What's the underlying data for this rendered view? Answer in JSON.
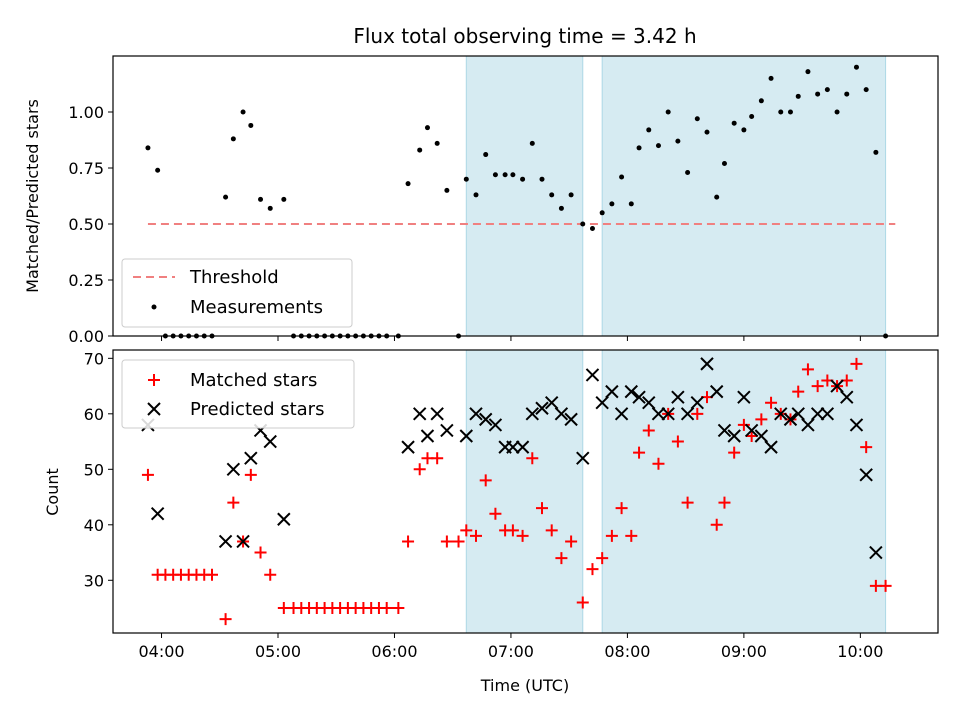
{
  "chart_data": [
    {
      "type": "scatter",
      "title": "Flux total observing time = 3.42 h",
      "ylabel": "Matched/Predicted stars",
      "xlabel": "",
      "xlim": [
        "03:35",
        "10:40"
      ],
      "ylim": [
        0,
        1.25
      ],
      "yticks": [
        "0.00",
        "0.25",
        "0.50",
        "0.75",
        "1.00"
      ],
      "xticks": [
        "04:00",
        "05:00",
        "06:00",
        "07:00",
        "08:00",
        "09:00",
        "10:00"
      ],
      "shaded_intervals": [
        [
          "06:37",
          "07:37"
        ],
        [
          "07:47",
          "10:13"
        ]
      ],
      "legend_position": "lower-left",
      "legend": [
        "Threshold",
        "Measurements"
      ],
      "threshold": {
        "name": "Threshold",
        "value": 0.5,
        "x_range": [
          "03:53",
          "10:18"
        ],
        "color": "#f08080"
      },
      "series": [
        {
          "name": "Measurements",
          "color": "#000000",
          "points": [
            [
              "03:53",
              0.84
            ],
            [
              "03:58",
              0.74
            ],
            [
              "04:02",
              0.0
            ],
            [
              "04:06",
              0.0
            ],
            [
              "04:10",
              0.0
            ],
            [
              "04:14",
              0.0
            ],
            [
              "04:18",
              0.0
            ],
            [
              "04:22",
              0.0
            ],
            [
              "04:26",
              0.0
            ],
            [
              "04:33",
              0.62
            ],
            [
              "04:37",
              0.88
            ],
            [
              "04:42",
              1.0
            ],
            [
              "04:46",
              0.94
            ],
            [
              "04:51",
              0.61
            ],
            [
              "04:56",
              0.57
            ],
            [
              "05:03",
              0.61
            ],
            [
              "05:08",
              0.0
            ],
            [
              "05:12",
              0.0
            ],
            [
              "05:16",
              0.0
            ],
            [
              "05:20",
              0.0
            ],
            [
              "05:24",
              0.0
            ],
            [
              "05:28",
              0.0
            ],
            [
              "05:32",
              0.0
            ],
            [
              "05:36",
              0.0
            ],
            [
              "05:40",
              0.0
            ],
            [
              "05:44",
              0.0
            ],
            [
              "05:48",
              0.0
            ],
            [
              "05:52",
              0.0
            ],
            [
              "05:56",
              0.0
            ],
            [
              "06:02",
              0.0
            ],
            [
              "06:07",
              0.68
            ],
            [
              "06:13",
              0.83
            ],
            [
              "06:17",
              0.93
            ],
            [
              "06:22",
              0.86
            ],
            [
              "06:27",
              0.65
            ],
            [
              "06:33",
              0.0
            ],
            [
              "06:37",
              0.7
            ],
            [
              "06:42",
              0.63
            ],
            [
              "06:47",
              0.81
            ],
            [
              "06:52",
              0.72
            ],
            [
              "06:57",
              0.72
            ],
            [
              "07:01",
              0.72
            ],
            [
              "07:06",
              0.7
            ],
            [
              "07:11",
              0.86
            ],
            [
              "07:16",
              0.7
            ],
            [
              "07:21",
              0.63
            ],
            [
              "07:26",
              0.57
            ],
            [
              "07:31",
              0.63
            ],
            [
              "07:37",
              0.5
            ],
            [
              "07:42",
              0.48
            ],
            [
              "07:47",
              0.55
            ],
            [
              "07:52",
              0.59
            ],
            [
              "07:57",
              0.71
            ],
            [
              "08:02",
              0.59
            ],
            [
              "08:06",
              0.84
            ],
            [
              "08:11",
              0.92
            ],
            [
              "08:16",
              0.85
            ],
            [
              "08:21",
              1.0
            ],
            [
              "08:26",
              0.87
            ],
            [
              "08:31",
              0.73
            ],
            [
              "08:36",
              0.97
            ],
            [
              "08:41",
              0.91
            ],
            [
              "08:46",
              0.62
            ],
            [
              "08:50",
              0.77
            ],
            [
              "08:55",
              0.95
            ],
            [
              "09:00",
              0.92
            ],
            [
              "09:04",
              0.98
            ],
            [
              "09:09",
              1.05
            ],
            [
              "09:14",
              1.15
            ],
            [
              "09:19",
              1.0
            ],
            [
              "09:24",
              1.0
            ],
            [
              "09:28",
              1.07
            ],
            [
              "09:33",
              1.18
            ],
            [
              "09:38",
              1.08
            ],
            [
              "09:43",
              1.1
            ],
            [
              "09:48",
              1.0
            ],
            [
              "09:53",
              1.08
            ],
            [
              "09:58",
              1.2
            ],
            [
              "10:03",
              1.1
            ],
            [
              "10:08",
              0.82
            ],
            [
              "10:13",
              0.0
            ]
          ]
        }
      ]
    },
    {
      "type": "scatter",
      "title": "",
      "ylabel": "Count",
      "xlabel": "Time (UTC)",
      "xlim": [
        "03:35",
        "10:40"
      ],
      "ylim": [
        20.5,
        71.5
      ],
      "yticks": [
        "30",
        "40",
        "50",
        "60",
        "70"
      ],
      "xticks": [
        "04:00",
        "05:00",
        "06:00",
        "07:00",
        "08:00",
        "09:00",
        "10:00"
      ],
      "shaded_intervals": [
        [
          "06:37",
          "07:37"
        ],
        [
          "07:47",
          "10:13"
        ]
      ],
      "legend_position": "upper-left",
      "legend": [
        "Matched stars",
        "Predicted stars"
      ],
      "series": [
        {
          "name": "Matched stars",
          "marker": "plus",
          "color": "#ff0000",
          "points": [
            [
              "03:53",
              49
            ],
            [
              "03:58",
              31
            ],
            [
              "04:02",
              31
            ],
            [
              "04:06",
              31
            ],
            [
              "04:10",
              31
            ],
            [
              "04:14",
              31
            ],
            [
              "04:18",
              31
            ],
            [
              "04:22",
              31
            ],
            [
              "04:26",
              31
            ],
            [
              "04:33",
              23
            ],
            [
              "04:37",
              44
            ],
            [
              "04:42",
              37
            ],
            [
              "04:46",
              49
            ],
            [
              "04:51",
              35
            ],
            [
              "04:56",
              31
            ],
            [
              "05:03",
              25
            ],
            [
              "05:08",
              25
            ],
            [
              "05:12",
              25
            ],
            [
              "05:16",
              25
            ],
            [
              "05:20",
              25
            ],
            [
              "05:24",
              25
            ],
            [
              "05:28",
              25
            ],
            [
              "05:32",
              25
            ],
            [
              "05:36",
              25
            ],
            [
              "05:40",
              25
            ],
            [
              "05:44",
              25
            ],
            [
              "05:48",
              25
            ],
            [
              "05:52",
              25
            ],
            [
              "05:56",
              25
            ],
            [
              "06:02",
              25
            ],
            [
              "06:07",
              37
            ],
            [
              "06:13",
              50
            ],
            [
              "06:17",
              52
            ],
            [
              "06:22",
              52
            ],
            [
              "06:27",
              37
            ],
            [
              "06:33",
              37
            ],
            [
              "06:37",
              39
            ],
            [
              "06:42",
              38
            ],
            [
              "06:47",
              48
            ],
            [
              "06:52",
              42
            ],
            [
              "06:57",
              39
            ],
            [
              "07:01",
              39
            ],
            [
              "07:06",
              38
            ],
            [
              "07:11",
              52
            ],
            [
              "07:16",
              43
            ],
            [
              "07:21",
              39
            ],
            [
              "07:26",
              34
            ],
            [
              "07:31",
              37
            ],
            [
              "07:37",
              26
            ],
            [
              "07:42",
              32
            ],
            [
              "07:47",
              34
            ],
            [
              "07:52",
              38
            ],
            [
              "07:57",
              43
            ],
            [
              "08:02",
              38
            ],
            [
              "08:06",
              53
            ],
            [
              "08:11",
              57
            ],
            [
              "08:16",
              51
            ],
            [
              "08:21",
              60
            ],
            [
              "08:26",
              55
            ],
            [
              "08:31",
              44
            ],
            [
              "08:36",
              60
            ],
            [
              "08:41",
              63
            ],
            [
              "08:46",
              40
            ],
            [
              "08:50",
              44
            ],
            [
              "08:55",
              53
            ],
            [
              "09:00",
              58
            ],
            [
              "09:04",
              56
            ],
            [
              "09:09",
              59
            ],
            [
              "09:14",
              62
            ],
            [
              "09:19",
              60
            ],
            [
              "09:24",
              59
            ],
            [
              "09:28",
              64
            ],
            [
              "09:33",
              68
            ],
            [
              "09:38",
              65
            ],
            [
              "09:43",
              66
            ],
            [
              "09:48",
              65
            ],
            [
              "09:53",
              66
            ],
            [
              "09:58",
              69
            ],
            [
              "10:03",
              54
            ],
            [
              "10:08",
              29
            ],
            [
              "10:13",
              29
            ]
          ]
        },
        {
          "name": "Predicted stars",
          "marker": "x",
          "color": "#000000",
          "points": [
            [
              "03:53",
              58
            ],
            [
              "03:58",
              42
            ],
            [
              "04:33",
              37
            ],
            [
              "04:37",
              50
            ],
            [
              "04:42",
              37
            ],
            [
              "04:46",
              52
            ],
            [
              "04:51",
              57
            ],
            [
              "04:56",
              55
            ],
            [
              "05:03",
              41
            ],
            [
              "06:07",
              54
            ],
            [
              "06:13",
              60
            ],
            [
              "06:17",
              56
            ],
            [
              "06:22",
              60
            ],
            [
              "06:27",
              57
            ],
            [
              "06:37",
              56
            ],
            [
              "06:42",
              60
            ],
            [
              "06:47",
              59
            ],
            [
              "06:52",
              58
            ],
            [
              "06:57",
              54
            ],
            [
              "07:01",
              54
            ],
            [
              "07:06",
              54
            ],
            [
              "07:11",
              60
            ],
            [
              "07:16",
              61
            ],
            [
              "07:21",
              62
            ],
            [
              "07:26",
              60
            ],
            [
              "07:31",
              59
            ],
            [
              "07:37",
              52
            ],
            [
              "07:42",
              67
            ],
            [
              "07:47",
              62
            ],
            [
              "07:52",
              64
            ],
            [
              "07:57",
              60
            ],
            [
              "08:02",
              64
            ],
            [
              "08:06",
              63
            ],
            [
              "08:11",
              62
            ],
            [
              "08:16",
              60
            ],
            [
              "08:21",
              60
            ],
            [
              "08:26",
              63
            ],
            [
              "08:31",
              60
            ],
            [
              "08:36",
              62
            ],
            [
              "08:41",
              69
            ],
            [
              "08:46",
              64
            ],
            [
              "08:50",
              57
            ],
            [
              "08:55",
              56
            ],
            [
              "09:00",
              63
            ],
            [
              "09:04",
              57
            ],
            [
              "09:09",
              56
            ],
            [
              "09:14",
              54
            ],
            [
              "09:19",
              60
            ],
            [
              "09:24",
              59
            ],
            [
              "09:28",
              60
            ],
            [
              "09:33",
              58
            ],
            [
              "09:38",
              60
            ],
            [
              "09:43",
              60
            ],
            [
              "09:48",
              65
            ],
            [
              "09:53",
              63
            ],
            [
              "09:58",
              58
            ],
            [
              "10:03",
              49
            ],
            [
              "10:08",
              35
            ]
          ]
        }
      ]
    }
  ]
}
